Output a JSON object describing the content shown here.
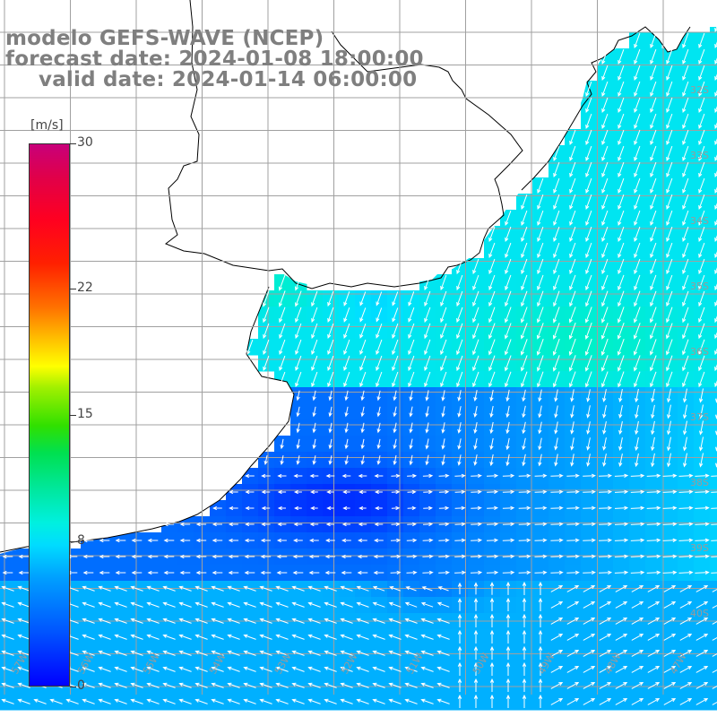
{
  "title": {
    "line1": "modelo GEFS-WAVE (NCEP)",
    "line2": "forecast date: 2024-01-08 18:00:00",
    "line3": "valid date: 2024-01-14 06:00:00"
  },
  "colorbar": {
    "unit": "[m/s]",
    "min": 0,
    "max": 30,
    "ticks": [
      "30",
      "22",
      "15",
      "8",
      "0"
    ],
    "tick_values": [
      30,
      22,
      15,
      8,
      0
    ]
  },
  "map": {
    "lat_labels": [
      "32S",
      "33S",
      "34S",
      "35S",
      "36S",
      "37S",
      "38S",
      "39S",
      "40S"
    ],
    "lon_labels": [
      "57W",
      "56W",
      "55W",
      "54W",
      "53W",
      "52W",
      "51W",
      "50W",
      "49W",
      "48W",
      "47W"
    ]
  },
  "colors": {
    "title_text": "#7f7f7f",
    "vector": "#ffffff",
    "coast": "#000000",
    "grid": "#a0a0a0"
  }
}
